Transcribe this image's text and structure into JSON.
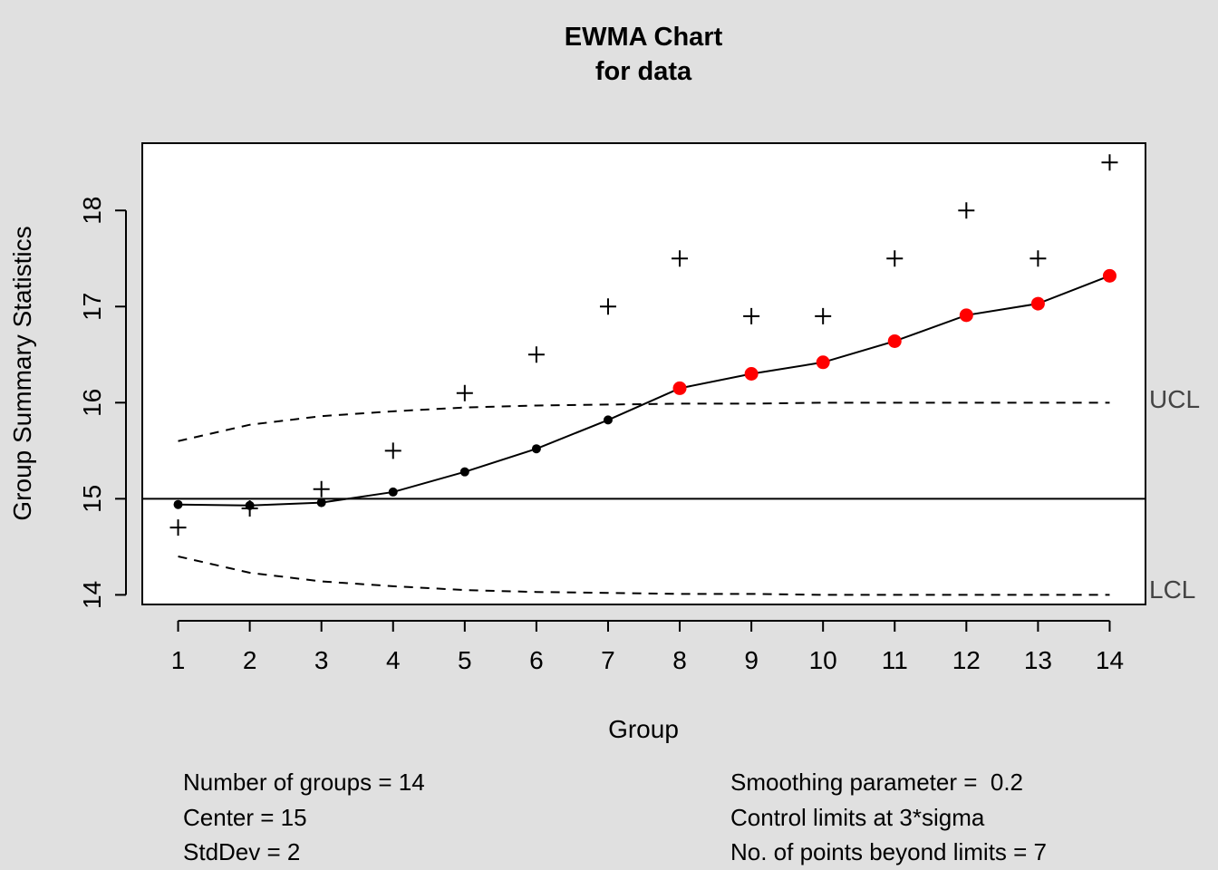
{
  "chart_data": {
    "type": "line",
    "title": "EWMA Chart",
    "subtitle": "for data",
    "xlabel": "Group",
    "ylabel": "Group Summary Statistics",
    "x": [
      1,
      2,
      3,
      4,
      5,
      6,
      7,
      8,
      9,
      10,
      11,
      12,
      13,
      14
    ],
    "xlim": [
      0.5,
      14.5
    ],
    "ylim": [
      13.9,
      18.7
    ],
    "x_ticks": [
      "1",
      "2",
      "3",
      "4",
      "5",
      "6",
      "7",
      "8",
      "9",
      "10",
      "11",
      "12",
      "13",
      "14"
    ],
    "y_ticks": [
      "14",
      "15",
      "16",
      "17",
      "18"
    ],
    "center": 15,
    "series": [
      {
        "name": "",
        "style": "plus",
        "values": [
          14.7,
          14.9,
          15.1,
          15.5,
          16.1,
          16.5,
          17.0,
          17.5,
          16.9,
          16.9,
          17.5,
          18.0,
          17.5,
          18.5
        ]
      },
      {
        "name": "",
        "style": "line-points",
        "values": [
          14.94,
          14.93,
          14.96,
          15.07,
          15.28,
          15.52,
          15.82,
          16.15,
          16.3,
          16.42,
          16.64,
          16.91,
          17.03,
          17.32
        ],
        "beyond_limits": [
          false,
          false,
          false,
          false,
          false,
          false,
          false,
          true,
          true,
          true,
          true,
          true,
          true,
          true
        ]
      },
      {
        "name": "UCL",
        "style": "dashed",
        "values": [
          15.6,
          15.77,
          15.86,
          15.91,
          15.95,
          15.97,
          15.98,
          15.99,
          15.99,
          16.0,
          16.0,
          16.0,
          16.0,
          16.0
        ]
      },
      {
        "name": "LCL",
        "style": "dashed",
        "values": [
          14.4,
          14.23,
          14.14,
          14.09,
          14.05,
          14.03,
          14.02,
          14.01,
          14.01,
          14.0,
          14.0,
          14.0,
          14.0,
          14.0
        ]
      }
    ],
    "limit_labels": {
      "ucl": "UCL",
      "lcl": "LCL"
    },
    "colors": {
      "in_control": "#000000",
      "beyond_limits": "#ff0000",
      "background": "#e0e0e0",
      "plot_area": "#ffffff"
    },
    "grid": false,
    "legend": "none"
  },
  "stats": {
    "left": [
      "Number of groups = 14",
      "Center = 15",
      "StdDev = 2"
    ],
    "right": [
      "Smoothing parameter =  0.2",
      "Control limits at 3*sigma",
      "No. of points beyond limits = 7"
    ]
  }
}
